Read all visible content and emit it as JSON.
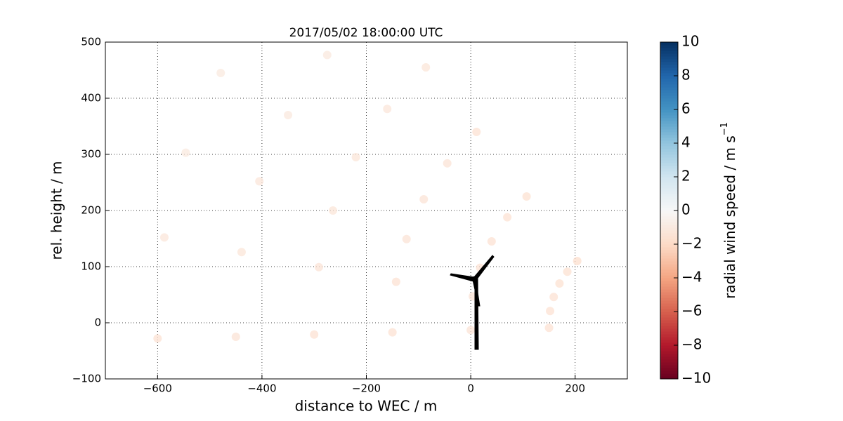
{
  "chart_data": {
    "type": "scatter",
    "title": "2017/05/02 18:00:00 UTC",
    "x_label": "distance to WEC / m",
    "y_label": "rel. height / m",
    "colorbar_label": "radial wind speed / m s",
    "colorbar_label_sup": "−1",
    "x": [
      150,
      0,
      -150,
      -300,
      -450,
      -600,
      152,
      4,
      -143,
      -291,
      -439,
      -587,
      159,
      18,
      -123,
      -264,
      -405,
      -546,
      170,
      40,
      -90,
      -220,
      -350,
      -479,
      185,
      70,
      -45,
      -160,
      -275,
      204,
      107,
      11,
      -86
    ],
    "y": [
      -9,
      -13,
      -17,
      -21,
      -25,
      -28,
      21,
      47,
      73,
      99,
      126,
      152,
      46,
      98,
      149,
      200,
      252,
      303,
      70,
      145,
      220,
      295,
      370,
      445,
      91,
      188,
      284,
      381,
      477,
      110,
      225,
      340,
      455
    ],
    "values": [
      -1.5,
      -1.4,
      -1.5,
      -1.5,
      -1.4,
      -1.5,
      -1.5,
      -1.4,
      -1.5,
      -1.4,
      -1.3,
      -1.2,
      -1.5,
      -1.5,
      -1.4,
      -1.3,
      -1.2,
      -1.0,
      -1.6,
      -1.5,
      -1.4,
      -1.3,
      -1.1,
      -1.0,
      -1.6,
      -1.5,
      -1.4,
      -1.2,
      -1.1,
      -1.7,
      -1.6,
      -1.5,
      -1.3
    ],
    "clim": [
      -10,
      10
    ],
    "colormap": [
      "#67001f",
      "#b2182b",
      "#d6604d",
      "#f4a582",
      "#fddbc7",
      "#f7f7f7",
      "#d1e5f0",
      "#92c5de",
      "#4393c3",
      "#2166ac",
      "#053061"
    ],
    "xlim": [
      -700,
      300
    ],
    "ylim": [
      -100,
      500
    ],
    "xticks": [
      {
        "value": -600,
        "label": "−600"
      },
      {
        "value": -400,
        "label": "−400"
      },
      {
        "value": -200,
        "label": "−200"
      },
      0,
      200
    ],
    "yticks": [
      {
        "value": -100,
        "label": "−100"
      },
      0,
      100,
      200,
      300,
      400,
      500
    ],
    "cticks": [
      {
        "value": -10,
        "label": "−10"
      },
      {
        "value": -8,
        "label": "−8"
      },
      {
        "value": -6,
        "label": "−6"
      },
      {
        "value": -4,
        "label": "−4"
      },
      {
        "value": -2,
        "label": "−2"
      },
      0,
      2,
      4,
      6,
      8,
      10
    ],
    "grid": true
  }
}
